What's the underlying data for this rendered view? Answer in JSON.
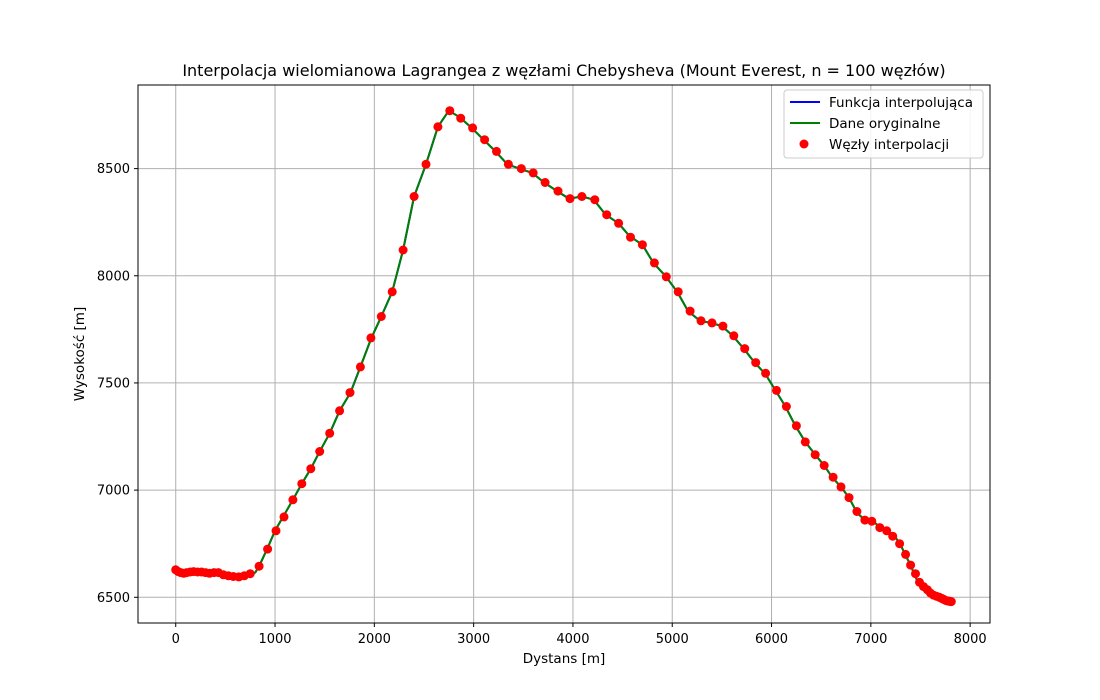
{
  "chart_data": {
    "type": "line",
    "title": "Interpolacja wielomianowa Lagrangea z węzłami Chebysheva (Mount Everest, n = 100 węzłów)",
    "xlabel": "Dystans [m]",
    "ylabel": "Wysokość [m]",
    "xlim": [
      -380,
      8200
    ],
    "ylim": [
      6380,
      8890
    ],
    "x_ticks": [
      0,
      1000,
      2000,
      3000,
      4000,
      5000,
      6000,
      7000,
      8000
    ],
    "y_ticks": [
      6500,
      7000,
      7500,
      8000,
      8500
    ],
    "grid": true,
    "legend_position": "top-right",
    "colors": {
      "interpolated": "#0000ff",
      "original": "#008000",
      "nodes": "#ff0000",
      "grid": "#b0b0b0",
      "axes": "#000000"
    },
    "series": [
      {
        "name": "Funkcja interpolująca",
        "kind": "line",
        "x": [
          0,
          100,
          200,
          300,
          400,
          500,
          600,
          700,
          800,
          840,
          920,
          1000,
          1080,
          1180,
          1270,
          1360,
          1450,
          1550,
          1650,
          1760,
          1860,
          1970,
          2070,
          2180,
          2290,
          2400,
          2520,
          2640,
          2750,
          2860,
          2980,
          3100,
          3220,
          3340,
          3460,
          3590,
          3710,
          3840,
          3960,
          4090,
          4210,
          4330,
          4460,
          4570,
          4700,
          4810,
          4930,
          5050,
          5160,
          5280,
          5390,
          5500,
          5610,
          5720,
          5830,
          5940,
          6040,
          6140,
          6240,
          6340,
          6440,
          6530,
          6610,
          6700,
          6780,
          6860,
          6940,
          7020,
          7100,
          7170,
          7240,
          7300,
          7350,
          7400,
          7440,
          7480,
          7520,
          7560,
          7600,
          7640,
          7680,
          7720,
          7760,
          7800
        ],
        "y": [
          6625,
          6615,
          6620,
          6615,
          6612,
          6600,
          6595,
          6600,
          6615,
          6645,
          6725,
          6810,
          6875,
          6955,
          7030,
          7100,
          7180,
          7265,
          7370,
          7455,
          7575,
          7710,
          7810,
          7925,
          8120,
          8370,
          8520,
          8695,
          8770,
          8740,
          8690,
          8635,
          8580,
          8520,
          8500,
          8480,
          8435,
          8395,
          8360,
          8370,
          8355,
          8285,
          8245,
          8185,
          8145,
          8060,
          8000,
          7925,
          7835,
          7790,
          7780,
          7765,
          7720,
          7660,
          7595,
          7540,
          7465,
          7390,
          7300,
          7225,
          7165,
          7115,
          7060,
          7015,
          6965,
          6895,
          6860,
          6855,
          6825,
          6810,
          6785,
          6745,
          6695,
          6650,
          6605,
          6565,
          6540,
          6520,
          6505,
          6500,
          6490,
          6485,
          6485,
          6480
        ]
      },
      {
        "name": "Dane oryginalne",
        "kind": "line",
        "x": [
          0,
          100,
          200,
          300,
          400,
          500,
          600,
          700,
          800,
          840,
          920,
          1000,
          1080,
          1180,
          1270,
          1360,
          1450,
          1550,
          1650,
          1760,
          1860,
          1970,
          2070,
          2180,
          2290,
          2400,
          2520,
          2640,
          2750,
          2860,
          2980,
          3100,
          3220,
          3340,
          3460,
          3590,
          3710,
          3840,
          3960,
          4090,
          4210,
          4330,
          4460,
          4570,
          4700,
          4810,
          4930,
          5050,
          5160,
          5280,
          5390,
          5500,
          5610,
          5720,
          5830,
          5940,
          6040,
          6140,
          6240,
          6340,
          6440,
          6530,
          6610,
          6700,
          6780,
          6860,
          6940,
          7020,
          7100,
          7170,
          7240,
          7300,
          7350,
          7400,
          7440,
          7480,
          7520,
          7560,
          7600,
          7640,
          7680,
          7720,
          7760,
          7800
        ],
        "y": [
          6625,
          6615,
          6620,
          6615,
          6612,
          6600,
          6595,
          6600,
          6615,
          6645,
          6725,
          6810,
          6875,
          6955,
          7030,
          7100,
          7180,
          7265,
          7370,
          7455,
          7575,
          7710,
          7810,
          7925,
          8120,
          8370,
          8520,
          8695,
          8770,
          8740,
          8690,
          8635,
          8580,
          8520,
          8500,
          8480,
          8435,
          8395,
          8360,
          8370,
          8355,
          8285,
          8245,
          8185,
          8145,
          8060,
          8000,
          7925,
          7835,
          7790,
          7780,
          7765,
          7720,
          7660,
          7595,
          7540,
          7465,
          7390,
          7300,
          7225,
          7165,
          7115,
          7060,
          7015,
          6965,
          6895,
          6860,
          6855,
          6825,
          6810,
          6785,
          6745,
          6695,
          6650,
          6605,
          6565,
          6540,
          6520,
          6505,
          6500,
          6490,
          6485,
          6485,
          6480
        ]
      },
      {
        "name": "Węzły interpolacji",
        "kind": "scatter",
        "x": [
          0,
          25,
          50,
          80,
          110,
          145,
          180,
          220,
          260,
          300,
          340,
          385,
          430,
          480,
          530,
          580,
          635,
          690,
          750,
          840,
          925,
          1010,
          1090,
          1180,
          1270,
          1360,
          1450,
          1550,
          1650,
          1755,
          1860,
          1965,
          2070,
          2180,
          2290,
          2400,
          2520,
          2640,
          2760,
          2870,
          2990,
          3110,
          3230,
          3350,
          3480,
          3600,
          3720,
          3850,
          3970,
          4090,
          4220,
          4340,
          4460,
          4580,
          4700,
          4820,
          4940,
          5060,
          5180,
          5290,
          5400,
          5510,
          5620,
          5730,
          5840,
          5940,
          6050,
          6150,
          6250,
          6340,
          6440,
          6530,
          6620,
          6700,
          6780,
          6860,
          6940,
          7010,
          7090,
          7160,
          7220,
          7290,
          7350,
          7400,
          7450,
          7490,
          7530,
          7570,
          7600,
          7630,
          7660,
          7690,
          7715,
          7735,
          7755,
          7770,
          7785,
          7795,
          7805,
          7810
        ],
        "y": [
          6628,
          6620,
          6615,
          6612,
          6615,
          6618,
          6620,
          6618,
          6618,
          6615,
          6612,
          6615,
          6615,
          6605,
          6600,
          6597,
          6595,
          6600,
          6610,
          6645,
          6725,
          6810,
          6875,
          6955,
          7030,
          7100,
          7180,
          7265,
          7370,
          7455,
          7575,
          7710,
          7810,
          7925,
          8120,
          8370,
          8520,
          8695,
          8770,
          8735,
          8690,
          8635,
          8580,
          8520,
          8500,
          8480,
          8435,
          8395,
          8360,
          8370,
          8355,
          8285,
          8245,
          8180,
          8145,
          8060,
          7995,
          7925,
          7835,
          7790,
          7780,
          7765,
          7720,
          7660,
          7595,
          7545,
          7465,
          7390,
          7300,
          7225,
          7165,
          7115,
          7060,
          7015,
          6965,
          6900,
          6860,
          6855,
          6825,
          6810,
          6785,
          6750,
          6700,
          6650,
          6610,
          6570,
          6550,
          6535,
          6520,
          6510,
          6505,
          6500,
          6495,
          6490,
          6485,
          6483,
          6482,
          6481,
          6480,
          6480
        ]
      }
    ]
  }
}
